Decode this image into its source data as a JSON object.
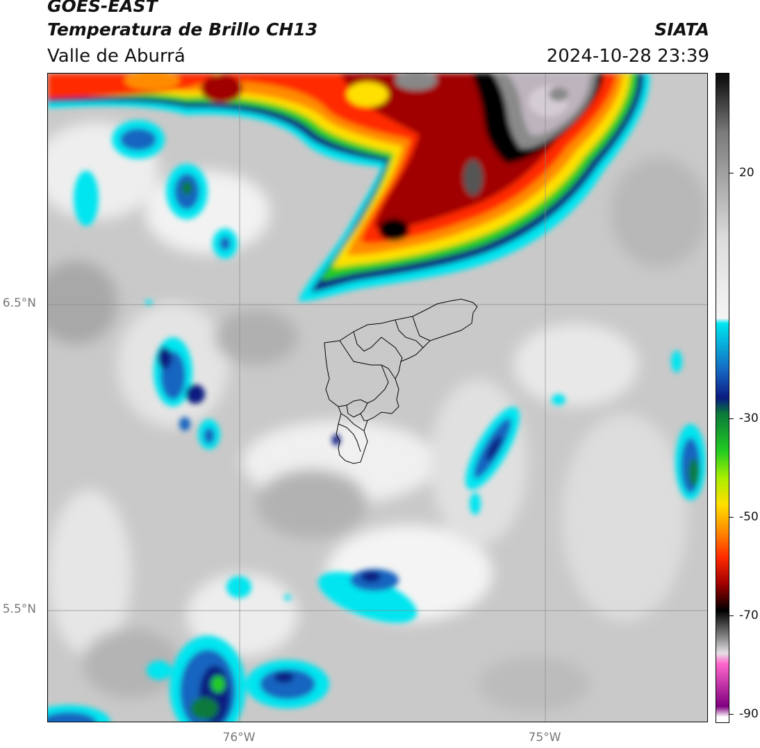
{
  "header": {
    "satellite": "GOES-EAST",
    "product": "Temperatura de Brillo CH13",
    "region": "Valle de Aburrá",
    "agency": "SIATA",
    "datetime": "2024-10-28 23:39"
  },
  "map": {
    "lat_labels": [
      "6.5°N",
      "5.5°N"
    ],
    "lon_labels": [
      "76°W",
      "75°W"
    ],
    "background_color": "#c9c9c9",
    "boundary_color": "#000000",
    "gridline_color": "#888888"
  },
  "colorbar": {
    "ticks": [
      "20",
      "-30",
      "-50",
      "-70",
      "-90"
    ],
    "stops": [
      {
        "value": 30,
        "color": "#111111"
      },
      {
        "value": 20,
        "color": "#7a7a7a"
      },
      {
        "value": 0,
        "color": "#dcdcdc"
      },
      {
        "value": -15,
        "color": "#f5f5f5"
      },
      {
        "value": -16,
        "color": "#00e5f0"
      },
      {
        "value": -25,
        "color": "#1565c0"
      },
      {
        "value": -30,
        "color": "#0a1a80"
      },
      {
        "value": -33,
        "color": "#0b7a3a"
      },
      {
        "value": -40,
        "color": "#22cc22"
      },
      {
        "value": -45,
        "color": "#a8ee00"
      },
      {
        "value": -50,
        "color": "#ffe000"
      },
      {
        "value": -55,
        "color": "#ff8c00"
      },
      {
        "value": -60,
        "color": "#ff2a00"
      },
      {
        "value": -65,
        "color": "#a00000"
      },
      {
        "value": -70,
        "color": "#000000"
      },
      {
        "value": -75,
        "color": "#888888"
      },
      {
        "value": -78,
        "color": "#e6e0e6"
      },
      {
        "value": -80,
        "color": "#ff66cc"
      },
      {
        "value": -88,
        "color": "#800080"
      },
      {
        "value": -90,
        "color": "#ffffff"
      }
    ]
  }
}
